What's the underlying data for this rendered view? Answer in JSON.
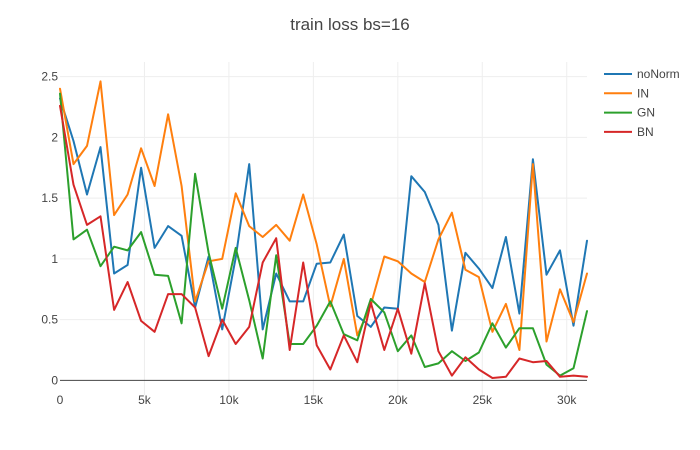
{
  "chart_data": {
    "type": "line",
    "title": "train loss bs=16",
    "xlabel": "",
    "ylabel": "",
    "xlim": [
      0,
      31200
    ],
    "ylim": [
      -0.12,
      2.62
    ],
    "x_ticks": [
      {
        "value": 0,
        "label": "0"
      },
      {
        "value": 5000,
        "label": "5k"
      },
      {
        "value": 10000,
        "label": "10k"
      },
      {
        "value": 15000,
        "label": "15k"
      },
      {
        "value": 20000,
        "label": "20k"
      },
      {
        "value": 25000,
        "label": "25k"
      },
      {
        "value": 30000,
        "label": "30k"
      }
    ],
    "y_ticks": [
      {
        "value": 0,
        "label": "0"
      },
      {
        "value": 0.5,
        "label": "0.5"
      },
      {
        "value": 1,
        "label": "1"
      },
      {
        "value": 1.5,
        "label": "1.5"
      },
      {
        "value": 2,
        "label": "2"
      },
      {
        "value": 2.5,
        "label": "2.5"
      }
    ],
    "grid": true,
    "legend_position": "top-right",
    "x": [
      0,
      800,
      1600,
      2400,
      3200,
      4000,
      4800,
      5600,
      6400,
      7200,
      8000,
      8800,
      9600,
      10400,
      11200,
      12000,
      12800,
      13600,
      14400,
      15200,
      16000,
      16800,
      17600,
      18400,
      19200,
      20000,
      20800,
      21600,
      22400,
      23200,
      24000,
      24800,
      25600,
      26400,
      27200,
      28000,
      28800,
      29600,
      30400,
      31200
    ],
    "series": [
      {
        "name": "noNorm",
        "color": "#1f77b4",
        "values": [
          2.32,
          1.97,
          1.53,
          1.92,
          0.88,
          0.95,
          1.75,
          1.09,
          1.27,
          1.19,
          0.6,
          1.02,
          0.42,
          1.01,
          1.78,
          0.42,
          0.88,
          0.65,
          0.65,
          0.96,
          0.97,
          1.2,
          0.53,
          0.44,
          0.6,
          0.59,
          1.68,
          1.55,
          1.28,
          0.41,
          1.05,
          0.92,
          0.76,
          1.18,
          0.55,
          1.82,
          0.87,
          1.07,
          0.45,
          1.15
        ]
      },
      {
        "name": "IN",
        "color": "#ff7f0e",
        "values": [
          2.4,
          1.78,
          1.93,
          2.46,
          1.36,
          1.53,
          1.91,
          1.6,
          2.19,
          1.6,
          0.65,
          0.98,
          1.0,
          1.54,
          1.27,
          1.18,
          1.28,
          1.15,
          1.53,
          1.12,
          0.61,
          1.0,
          0.37,
          0.62,
          1.02,
          0.98,
          0.88,
          0.81,
          1.16,
          1.38,
          0.91,
          0.85,
          0.4,
          0.63,
          0.25,
          1.78,
          0.32,
          0.75,
          0.48,
          0.88
        ]
      },
      {
        "name": "GN",
        "color": "#2ca02c",
        "values": [
          2.36,
          1.16,
          1.24,
          0.94,
          1.1,
          1.07,
          1.22,
          0.87,
          0.86,
          0.47,
          1.7,
          1.05,
          0.59,
          1.09,
          0.66,
          0.18,
          1.03,
          0.3,
          0.3,
          0.45,
          0.65,
          0.38,
          0.33,
          0.67,
          0.56,
          0.24,
          0.37,
          0.11,
          0.14,
          0.24,
          0.16,
          0.23,
          0.47,
          0.27,
          0.43,
          0.43,
          0.13,
          0.04,
          0.1,
          0.57
        ]
      },
      {
        "name": "BN",
        "color": "#d62728",
        "values": [
          2.26,
          1.61,
          1.28,
          1.35,
          0.58,
          0.81,
          0.49,
          0.4,
          0.71,
          0.71,
          0.6,
          0.2,
          0.5,
          0.3,
          0.44,
          0.97,
          1.17,
          0.25,
          0.97,
          0.29,
          0.09,
          0.37,
          0.15,
          0.64,
          0.25,
          0.59,
          0.22,
          0.8,
          0.24,
          0.04,
          0.19,
          0.09,
          0.02,
          0.03,
          0.18,
          0.15,
          0.16,
          0.03,
          0.04,
          0.03
        ]
      }
    ]
  }
}
